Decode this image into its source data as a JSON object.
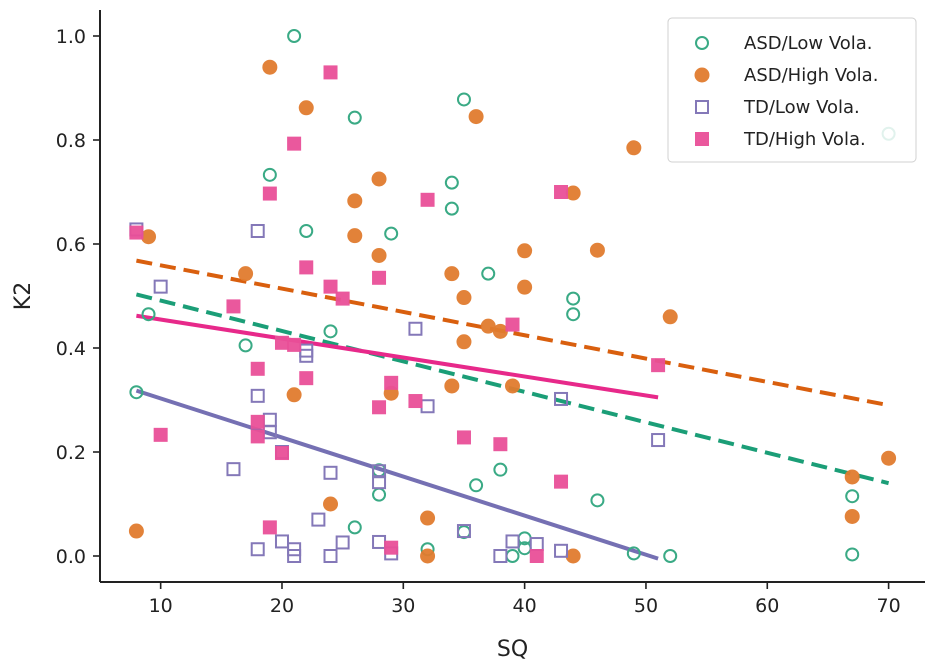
{
  "chart_data": {
    "type": "scatter",
    "title": "",
    "xlabel": "SQ",
    "ylabel": "K2",
    "xlim": [
      5,
      73
    ],
    "ylim": [
      -0.05,
      1.05
    ],
    "x_ticks": [
      10,
      20,
      30,
      40,
      50,
      60,
      70
    ],
    "y_ticks": [
      0.0,
      0.2,
      0.4,
      0.6,
      0.8,
      1.0
    ],
    "grid": false,
    "legend_position": "top-right",
    "series": [
      {
        "name": "ASD/Low Vola.",
        "marker": "circle-open",
        "color": "#3aaa85",
        "points": [
          [
            8,
            0.315
          ],
          [
            9,
            0.465
          ],
          [
            17,
            0.405
          ],
          [
            19,
            0.733
          ],
          [
            21,
            1.0
          ],
          [
            22,
            0.625
          ],
          [
            24,
            0.432
          ],
          [
            26,
            0.843
          ],
          [
            26,
            0.055
          ],
          [
            28,
            0.165
          ],
          [
            28,
            0.118
          ],
          [
            29,
            0.62
          ],
          [
            32,
            0.013
          ],
          [
            34,
            0.718
          ],
          [
            34,
            0.668
          ],
          [
            35,
            0.878
          ],
          [
            35,
            0.046
          ],
          [
            36,
            0.136
          ],
          [
            37,
            0.543
          ],
          [
            38,
            0.166
          ],
          [
            39,
            0.0
          ],
          [
            40,
            0.034
          ],
          [
            40,
            0.015
          ],
          [
            44,
            0.495
          ],
          [
            44,
            0.465
          ],
          [
            46,
            0.107
          ],
          [
            49,
            0.005
          ],
          [
            52,
            0.0
          ],
          [
            67,
            0.115
          ],
          [
            67,
            0.003
          ],
          [
            70,
            0.812
          ]
        ]
      },
      {
        "name": "ASD/High Vola.",
        "marker": "circle-filled",
        "color": "#e07b2e",
        "points": [
          [
            8,
            0.048
          ],
          [
            9,
            0.614
          ],
          [
            17,
            0.543
          ],
          [
            19,
            0.94
          ],
          [
            21,
            0.31
          ],
          [
            22,
            0.862
          ],
          [
            24,
            0.1
          ],
          [
            26,
            0.683
          ],
          [
            26,
            0.616
          ],
          [
            28,
            0.725
          ],
          [
            28,
            0.578
          ],
          [
            29,
            0.313
          ],
          [
            32,
            0.073
          ],
          [
            32,
            0.0
          ],
          [
            34,
            0.543
          ],
          [
            34,
            0.327
          ],
          [
            35,
            0.497
          ],
          [
            35,
            0.412
          ],
          [
            36,
            0.845
          ],
          [
            37,
            0.442
          ],
          [
            38,
            0.432
          ],
          [
            39,
            0.327
          ],
          [
            40,
            0.587
          ],
          [
            40,
            0.517
          ],
          [
            44,
            0.698
          ],
          [
            44,
            0.0
          ],
          [
            46,
            0.588
          ],
          [
            49,
            0.785
          ],
          [
            52,
            0.46
          ],
          [
            67,
            0.152
          ],
          [
            67,
            0.076
          ],
          [
            70,
            0.188
          ]
        ]
      },
      {
        "name": "TD/Low Vola.",
        "marker": "square-open",
        "color": "#8478b8",
        "points": [
          [
            8,
            0.628
          ],
          [
            10,
            0.518
          ],
          [
            16,
            0.167
          ],
          [
            18,
            0.625
          ],
          [
            18,
            0.308
          ],
          [
            18,
            0.013
          ],
          [
            19,
            0.262
          ],
          [
            19,
            0.238
          ],
          [
            20,
            0.2
          ],
          [
            20,
            0.028
          ],
          [
            21,
            0.013
          ],
          [
            21,
            0.0
          ],
          [
            22,
            0.395
          ],
          [
            22,
            0.385
          ],
          [
            23,
            0.07
          ],
          [
            24,
            0.16
          ],
          [
            24,
            0.0
          ],
          [
            25,
            0.026
          ],
          [
            28,
            0.163
          ],
          [
            28,
            0.142
          ],
          [
            28,
            0.027
          ],
          [
            29,
            0.005
          ],
          [
            31,
            0.437
          ],
          [
            32,
            0.288
          ],
          [
            35,
            0.048
          ],
          [
            38,
            0.0
          ],
          [
            39,
            0.028
          ],
          [
            41,
            0.023
          ],
          [
            43,
            0.302
          ],
          [
            43,
            0.01
          ],
          [
            51,
            0.223
          ]
        ]
      },
      {
        "name": "TD/High Vola.",
        "marker": "square-filled",
        "color": "#e94f98",
        "points": [
          [
            8,
            0.622
          ],
          [
            10,
            0.233
          ],
          [
            16,
            0.48
          ],
          [
            18,
            0.36
          ],
          [
            18,
            0.258
          ],
          [
            18,
            0.23
          ],
          [
            19,
            0.697
          ],
          [
            19,
            0.055
          ],
          [
            20,
            0.41
          ],
          [
            20,
            0.198
          ],
          [
            21,
            0.793
          ],
          [
            21,
            0.406
          ],
          [
            22,
            0.555
          ],
          [
            22,
            0.342
          ],
          [
            24,
            0.93
          ],
          [
            24,
            0.518
          ],
          [
            25,
            0.495
          ],
          [
            28,
            0.535
          ],
          [
            28,
            0.286
          ],
          [
            29,
            0.333
          ],
          [
            29,
            0.016
          ],
          [
            31,
            0.298
          ],
          [
            32,
            0.685
          ],
          [
            35,
            0.228
          ],
          [
            38,
            0.215
          ],
          [
            39,
            0.445
          ],
          [
            41,
            0.0
          ],
          [
            43,
            0.7
          ],
          [
            43,
            0.143
          ],
          [
            51,
            0.367
          ]
        ]
      }
    ],
    "fit_lines": [
      {
        "series": "ASD/High Vola.",
        "style": "dashed",
        "color": "#d95f0e",
        "x": [
          8,
          70
        ],
        "y": [
          0.568,
          0.29
        ]
      },
      {
        "series": "ASD/Low Vola.",
        "style": "dashed",
        "color": "#1b9e77",
        "x": [
          8,
          70
        ],
        "y": [
          0.503,
          0.14
        ]
      },
      {
        "series": "TD/High Vola.",
        "style": "solid",
        "color": "#e7298a",
        "x": [
          8,
          51
        ],
        "y": [
          0.462,
          0.305
        ]
      },
      {
        "series": "TD/Low Vola.",
        "style": "solid",
        "color": "#7570b3",
        "x": [
          8,
          51
        ],
        "y": [
          0.318,
          -0.005
        ]
      }
    ]
  }
}
